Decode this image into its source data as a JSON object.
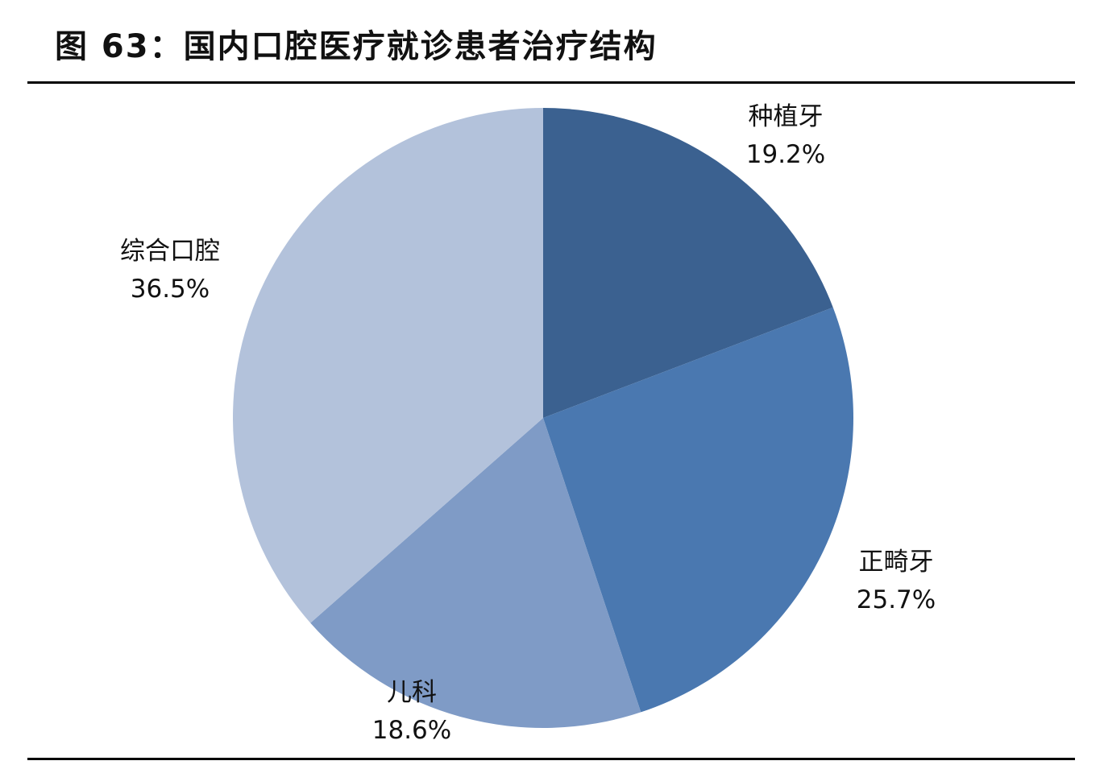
{
  "title": "图 63：国内口腔医疗就诊患者治疗结构",
  "chart_data": {
    "type": "pie",
    "start_angle_deg": 0,
    "direction": "clockwise",
    "slices": [
      {
        "label": "种植牙",
        "value": 19.2,
        "display": "19.2%",
        "color": "#3B6190"
      },
      {
        "label": "正畸牙",
        "value": 25.7,
        "display": "25.7%",
        "color": "#4A78B0"
      },
      {
        "label": "儿科",
        "value": 18.6,
        "display": "18.6%",
        "color": "#7F9BC6"
      },
      {
        "label": "综合口腔",
        "value": 36.5,
        "display": "36.5%",
        "color": "#B3C2DB"
      }
    ]
  }
}
